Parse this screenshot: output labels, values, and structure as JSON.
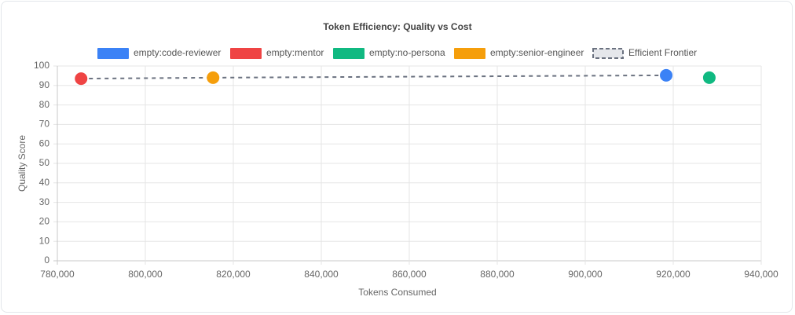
{
  "chart_data": {
    "type": "scatter",
    "title": "Token Efficiency: Quality vs Cost",
    "xlabel": "Tokens Consumed",
    "ylabel": "Quality Score",
    "xlim": [
      780000,
      940000
    ],
    "xticks": [
      {
        "value": 780000,
        "label": "780,000"
      },
      {
        "value": 800000,
        "label": "800,000"
      },
      {
        "value": 820000,
        "label": "820,000"
      },
      {
        "value": 840000,
        "label": "840,000"
      },
      {
        "value": 860000,
        "label": "860,000"
      },
      {
        "value": 880000,
        "label": "880,000"
      },
      {
        "value": 900000,
        "label": "900,000"
      },
      {
        "value": 920000,
        "label": "920,000"
      },
      {
        "value": 940000,
        "label": "940,000"
      }
    ],
    "ylim": [
      0,
      100
    ],
    "yticks": [
      0,
      10,
      20,
      30,
      40,
      50,
      60,
      70,
      80,
      90,
      100
    ],
    "grid": true,
    "legend": "top",
    "series": [
      {
        "name": "empty:code-reviewer",
        "color": "#3b82f6",
        "x": [
          918400
        ],
        "values": [
          95.2
        ]
      },
      {
        "name": "empty:mentor",
        "color": "#ef4444",
        "x": [
          785400
        ],
        "values": [
          93.5
        ]
      },
      {
        "name": "empty:no-persona",
        "color": "#10b981",
        "x": [
          928200
        ],
        "values": [
          94.0
        ]
      },
      {
        "name": "empty:senior-engineer",
        "color": "#f59e0b",
        "x": [
          815400
        ],
        "values": [
          94.0
        ]
      },
      {
        "name": "Efficient Frontier",
        "color": "#6b7280",
        "style": "dashed-line",
        "x": [
          785400,
          815400,
          918400
        ],
        "values": [
          93.5,
          94.0,
          95.2
        ]
      }
    ]
  }
}
